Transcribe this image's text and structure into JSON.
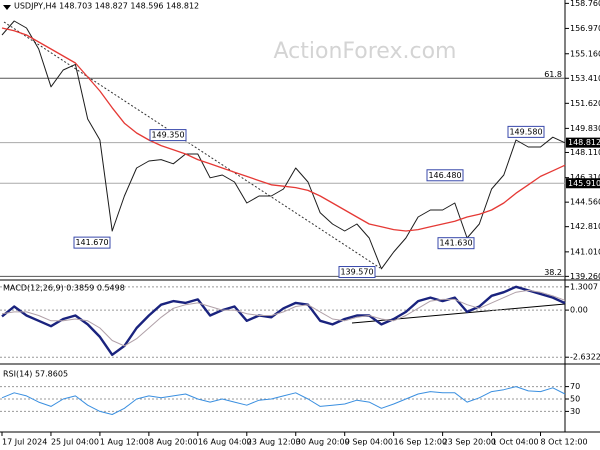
{
  "chart_data": [
    {
      "type": "line",
      "title": "USDJPY,H4 148.703 148.827 148.596 148.812",
      "watermark": "ActionForex.com",
      "categories": [
        "17 Jul 2024",
        null,
        null,
        null,
        "25 Jul 04:00",
        null,
        null,
        null,
        "1 Aug 12:00",
        null,
        null,
        null,
        "8 Aug 20:00",
        null,
        null,
        null,
        "16 Aug 04:00",
        null,
        null,
        null,
        "23 Aug 12:00",
        null,
        null,
        null,
        "30 Aug 20:00",
        null,
        null,
        null,
        "9 Sep 04:00",
        null,
        null,
        null,
        "16 Sep 12:00",
        null,
        null,
        null,
        "23 Sep 20:00",
        null,
        null,
        null,
        "1 Oct 04:00",
        null,
        null,
        null,
        "8 Oct 12:00",
        null,
        null
      ],
      "series": [
        {
          "color": "#1c1c1c",
          "values": [
            156.5,
            157.5,
            157.0,
            155.5,
            152.8,
            154.0,
            154.4,
            150.5,
            149.0,
            142.5,
            145.0,
            147.0,
            147.5,
            147.6,
            147.3,
            148.0,
            148.0,
            146.3,
            146.5,
            146.0,
            144.5,
            145.0,
            145.0,
            145.5,
            147.0,
            146.0,
            143.8,
            143.0,
            142.5,
            143.0,
            142.0,
            139.8,
            141.0,
            142.0,
            143.5,
            144.0,
            144.0,
            144.5,
            142.0,
            143.0,
            145.5,
            146.5,
            149.0,
            148.5,
            148.5,
            149.2,
            148.8
          ]
        },
        {
          "color": "#e53935",
          "values": [
            157.0,
            156.8,
            156.5,
            156.0,
            155.5,
            155.0,
            154.5,
            153.5,
            152.5,
            151.3,
            150.2,
            149.5,
            149.0,
            148.6,
            148.3,
            148.0,
            147.6,
            147.3,
            147.0,
            146.7,
            146.4,
            146.1,
            145.8,
            145.7,
            145.6,
            145.4,
            145.0,
            144.5,
            144.0,
            143.5,
            143.0,
            142.8,
            142.6,
            142.5,
            142.6,
            142.8,
            143.0,
            143.2,
            143.5,
            143.7,
            144.0,
            144.5,
            145.2,
            145.8,
            146.4,
            146.8,
            147.2
          ]
        }
      ],
      "ylim": [
        139.0,
        159.0
      ],
      "yticks": [
        {
          "value": 158.76,
          "label": "158.760"
        },
        {
          "value": 156.97,
          "label": "156.970"
        },
        {
          "value": 155.16,
          "label": "155.160"
        },
        {
          "value": 153.41,
          "label": "153.410"
        },
        {
          "value": 151.62,
          "label": "151.620"
        },
        {
          "value": 149.83,
          "label": "149.830"
        },
        {
          "value": 148.11,
          "label": "148.110"
        },
        {
          "value": 146.31,
          "label": "146.310"
        },
        {
          "value": 144.56,
          "label": "144.560"
        },
        {
          "value": 142.81,
          "label": "142.810"
        },
        {
          "value": 141.01,
          "label": "141.010"
        },
        {
          "value": 139.26,
          "label": "139.260"
        }
      ],
      "grid": false,
      "levels": [
        {
          "value": 153.41,
          "label": "61.8"
        },
        {
          "value": 139.26,
          "label": "38.2"
        }
      ],
      "price_markers": [
        {
          "value": 148.812,
          "label": "148.812"
        },
        {
          "value": 145.91,
          "label": "145.910"
        }
      ],
      "annotations": [
        {
          "value": 149.35,
          "label": "149.350"
        },
        {
          "value": 141.67,
          "label": "141.670"
        },
        {
          "value": 139.57,
          "label": "139.570"
        },
        {
          "value": 146.48,
          "label": "146.480"
        },
        {
          "value": 141.63,
          "label": "141.630"
        },
        {
          "value": 149.58,
          "label": "149.580"
        }
      ]
    },
    {
      "type": "line",
      "title": "MACD(12,26,9) 0.3859 0.5498",
      "series": [
        {
          "color": "#1a237e",
          "values": [
            -0.35,
            0.2,
            -0.3,
            -0.6,
            -0.9,
            -0.5,
            -0.3,
            -0.8,
            -1.5,
            -2.5,
            -2.0,
            -1.0,
            -0.3,
            0.3,
            0.5,
            0.4,
            0.6,
            -0.3,
            0.0,
            0.2,
            -0.6,
            -0.3,
            -0.4,
            0.1,
            0.4,
            0.3,
            -0.6,
            -0.8,
            -0.5,
            -0.3,
            -0.3,
            -0.8,
            -0.5,
            -0.1,
            0.5,
            0.7,
            0.5,
            0.7,
            -0.1,
            0.2,
            0.8,
            1.0,
            1.3,
            1.1,
            0.9,
            0.7,
            0.39
          ]
        },
        {
          "color": "#b0a0a8",
          "values": [
            -0.2,
            -0.1,
            -0.1,
            -0.3,
            -0.6,
            -0.6,
            -0.5,
            -0.6,
            -1.0,
            -1.7,
            -2.0,
            -1.6,
            -1.0,
            -0.4,
            0.1,
            0.3,
            0.4,
            0.2,
            0.0,
            0.0,
            -0.2,
            -0.3,
            -0.3,
            -0.1,
            0.2,
            0.3,
            -0.1,
            -0.5,
            -0.6,
            -0.4,
            -0.3,
            -0.5,
            -0.6,
            -0.3,
            0.1,
            0.5,
            0.6,
            0.6,
            0.3,
            0.1,
            0.4,
            0.7,
            1.0,
            1.1,
            1.0,
            0.8,
            0.55
          ]
        }
      ],
      "ylim": [
        -2.9,
        1.57
      ],
      "yticks": [
        1.3007,
        {
          "value": 0,
          "label": "0.00"
        },
        -2.6322
      ],
      "grid": true
    },
    {
      "type": "line",
      "title": "RSI(14) 57.8605",
      "series": [
        {
          "color": "#3a8fe0",
          "values": [
            52,
            60,
            55,
            45,
            38,
            50,
            55,
            40,
            30,
            25,
            35,
            50,
            55,
            52,
            55,
            58,
            50,
            45,
            50,
            45,
            40,
            48,
            50,
            55,
            60,
            50,
            38,
            40,
            42,
            48,
            45,
            35,
            42,
            50,
            58,
            62,
            60,
            60,
            45,
            52,
            62,
            65,
            70,
            63,
            62,
            68,
            58
          ]
        }
      ],
      "ylim": [
        0,
        100
      ],
      "yticks": [
        70,
        50,
        30
      ],
      "grid": true
    }
  ]
}
